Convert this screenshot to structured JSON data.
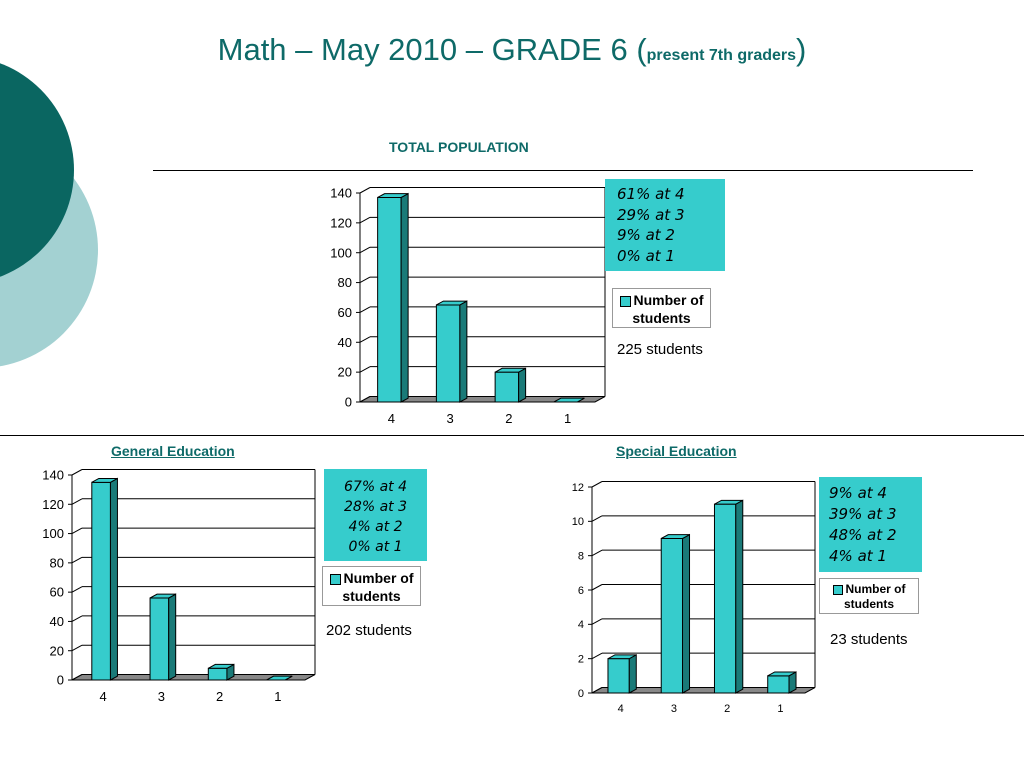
{
  "slide": {
    "title_main": "Math – May 2010 – GRADE 6 (",
    "title_sub": "present 7th graders",
    "title_close": ")",
    "colors": {
      "accent": "#0e6a68",
      "bar": "#36cccc",
      "bar_side": "#1a7a78",
      "deco_dark": "#0a6661",
      "deco_light": "#a3d1d2"
    }
  },
  "total": {
    "section_label": "TOTAL POPULATION",
    "percentages": [
      "61% at 4",
      "29% at 3",
      "9% at 2",
      "0% at 1"
    ],
    "legend": [
      "Number of",
      "students"
    ],
    "count": "225 students"
  },
  "general": {
    "section_label": "General Education",
    "percentages": [
      "67% at 4",
      "28% at 3",
      "4% at 2",
      "0% at 1"
    ],
    "legend": [
      "Number of",
      "students"
    ],
    "count": "202 students"
  },
  "special": {
    "section_label": "Special Education",
    "percentages": [
      "9% at 4",
      "39% at 3",
      "48% at 2",
      "4% at 1"
    ],
    "legend": [
      "Number of",
      "students"
    ],
    "count": "23 students"
  },
  "chart_data": [
    {
      "type": "bar",
      "categories": [
        "4",
        "3",
        "2",
        "1"
      ],
      "series": [
        {
          "name": "Number of students",
          "values": [
            137,
            65,
            20,
            0
          ]
        }
      ],
      "ylim": [
        0,
        140
      ],
      "yticks": [
        0,
        20,
        40,
        60,
        80,
        100,
        120,
        140
      ],
      "grid": true,
      "legend_position": "right"
    },
    {
      "type": "bar",
      "categories": [
        "4",
        "3",
        "2",
        "1"
      ],
      "series": [
        {
          "name": "Number of students",
          "values": [
            135,
            56,
            8,
            0
          ]
        }
      ],
      "ylim": [
        0,
        140
      ],
      "yticks": [
        0,
        20,
        40,
        60,
        80,
        100,
        120,
        140
      ],
      "grid": true,
      "legend_position": "right"
    },
    {
      "type": "bar",
      "categories": [
        "4",
        "3",
        "2",
        "1"
      ],
      "series": [
        {
          "name": "Number of students",
          "values": [
            2,
            9,
            11,
            1
          ]
        }
      ],
      "ylim": [
        0,
        12
      ],
      "yticks": [
        0,
        2,
        4,
        6,
        8,
        10,
        12
      ],
      "grid": true,
      "legend_position": "right"
    }
  ]
}
